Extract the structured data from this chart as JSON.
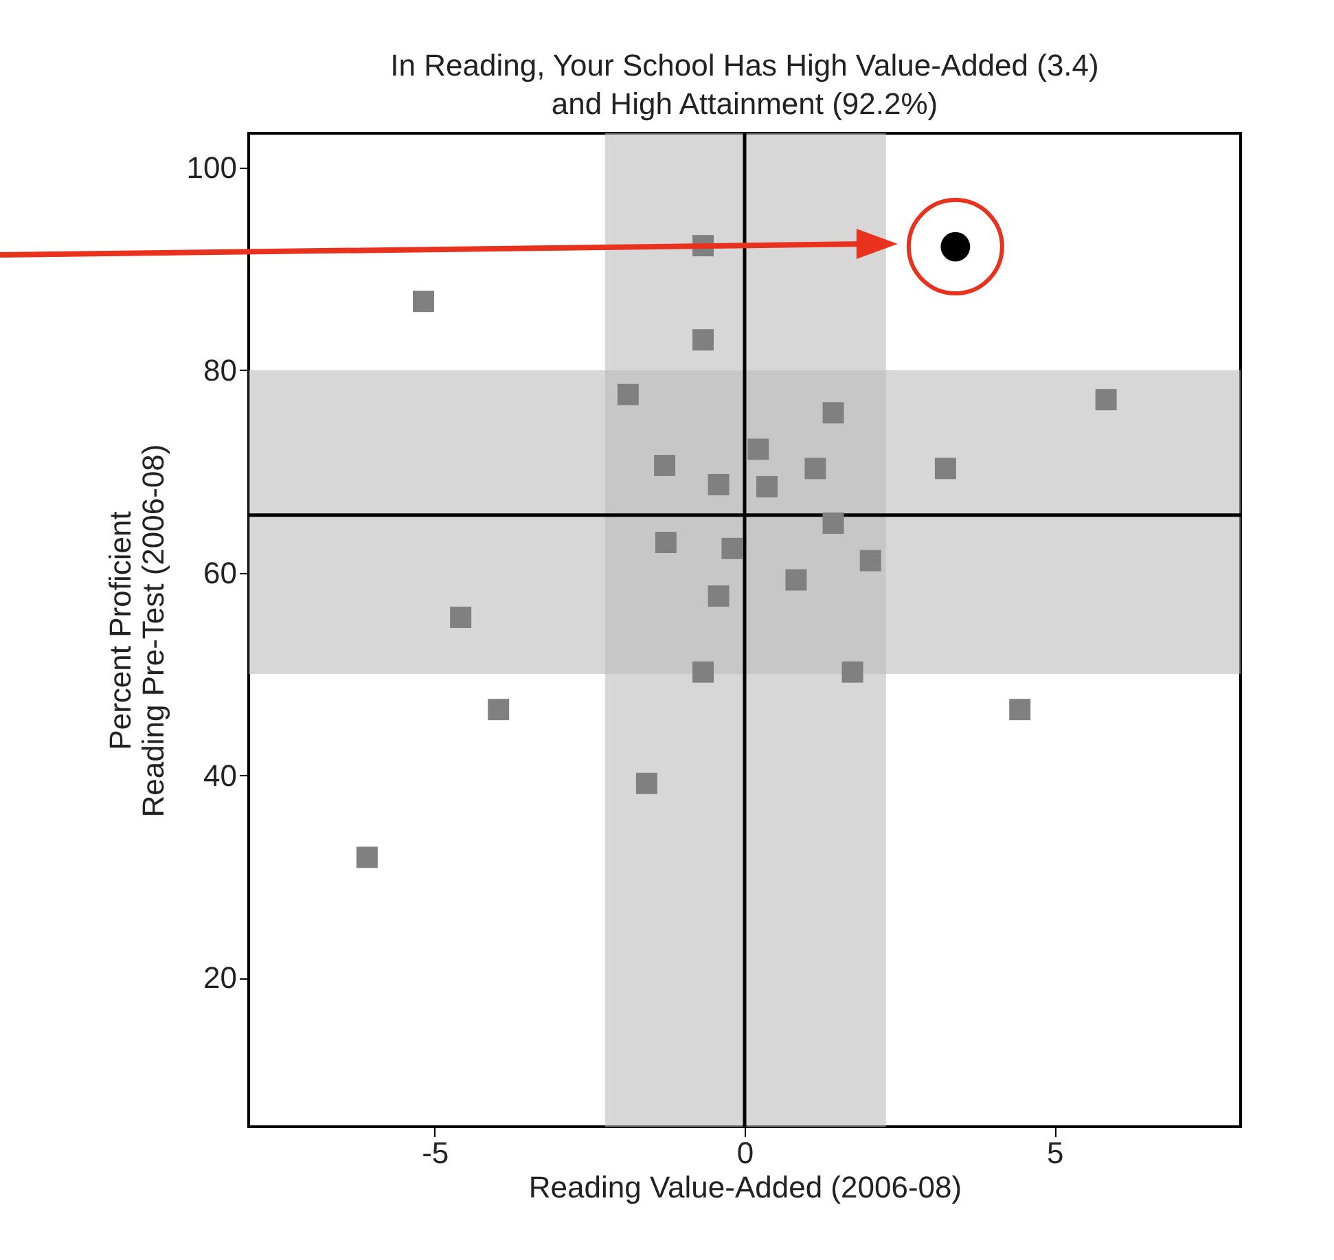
{
  "chart_data": {
    "type": "scatter",
    "title": [
      "In Reading, Your School Has High Value-Added (3.4)",
      "and High Attainment (92.2%)"
    ],
    "xlabel": "Reading Value-Added (2006-08)",
    "ylabel": [
      "Percent Proficient",
      "Reading Pre-Test (2006-08)"
    ],
    "xlim": [
      -8,
      8
    ],
    "ylim": [
      5.3,
      103.4
    ],
    "xticks": [
      -5,
      0,
      5
    ],
    "yticks": [
      20,
      40,
      60,
      80,
      100
    ],
    "grid": false,
    "bands": [
      {
        "axis": "x",
        "from": -2.25,
        "to": 2.28,
        "color": "#bdbdbd"
      },
      {
        "axis": "y",
        "from": 50,
        "to": 80,
        "color": "#bdbdbd"
      }
    ],
    "ref_lines": [
      {
        "axis": "x",
        "value": 0,
        "color": "#000000"
      },
      {
        "axis": "y",
        "value": 65.7,
        "color": "#000000"
      }
    ],
    "series": [
      {
        "color": "#808080",
        "marker": "square",
        "x": [
          -0.67,
          -5.18,
          -0.67,
          -1.88,
          1.43,
          5.83,
          0.22,
          -1.29,
          -0.42,
          0.36,
          1.14,
          3.24,
          1.43,
          -1.27,
          -0.2,
          2.03,
          0.83,
          -0.42,
          -4.58,
          -0.67,
          1.74,
          -3.97,
          4.44,
          -1.58,
          -6.09
        ],
        "values": [
          92.3,
          86.8,
          83.0,
          77.6,
          75.8,
          77.1,
          72.2,
          70.6,
          68.7,
          68.5,
          70.3,
          70.3,
          64.9,
          63.0,
          62.4,
          61.2,
          59.3,
          57.7,
          55.6,
          50.2,
          50.2,
          46.5,
          46.5,
          39.2,
          31.9
        ]
      },
      {
        "color": "#000000",
        "marker": "circle",
        "x": [
          3.4
        ],
        "values": [
          92.2
        ]
      }
    ]
  }
}
